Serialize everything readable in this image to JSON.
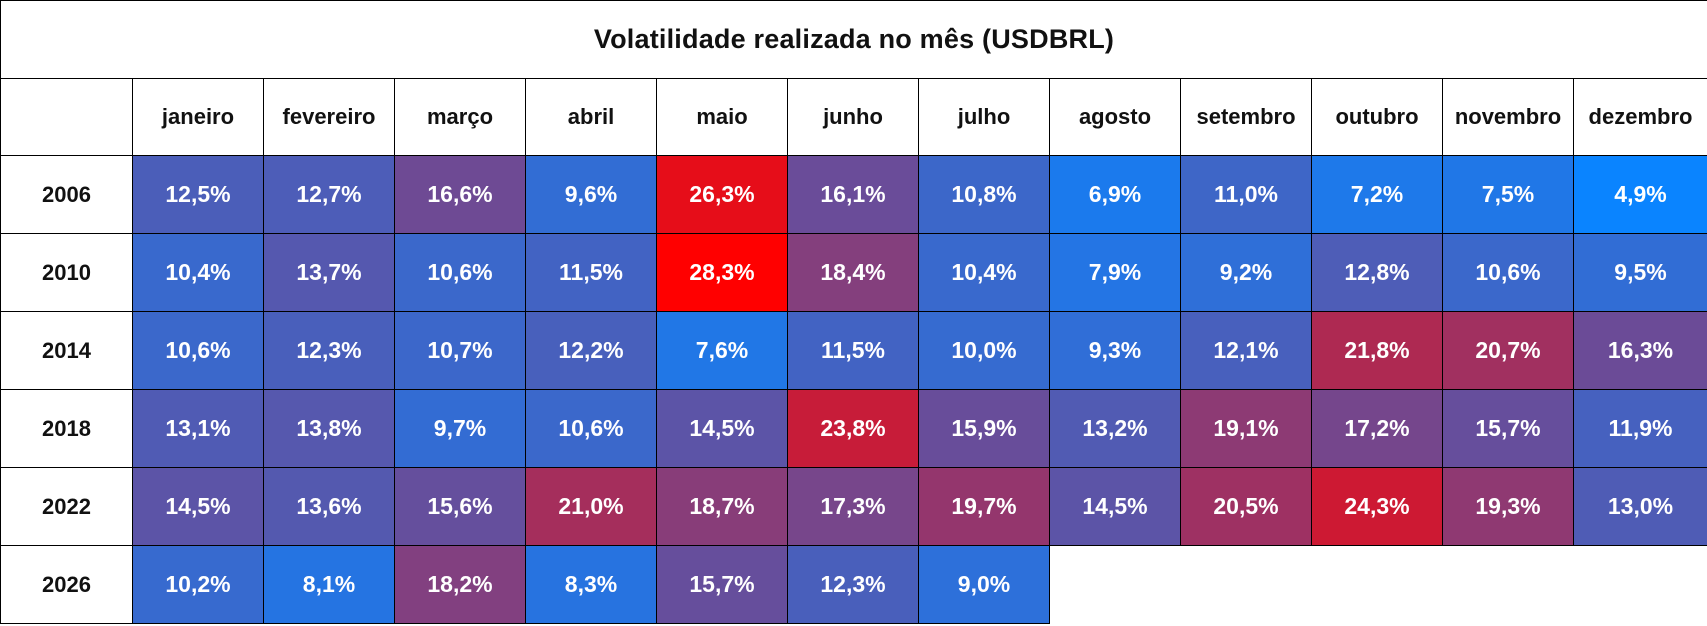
{
  "chart_data": {
    "type": "heatmap",
    "title": "Volatilidade realizada no mês (USDBRL)",
    "columns": [
      "janeiro",
      "fevereiro",
      "março",
      "abril",
      "maio",
      "junho",
      "julho",
      "agosto",
      "setembro",
      "outubro",
      "novembro",
      "dezembro"
    ],
    "rows": [
      "2006",
      "2010",
      "2014",
      "2018",
      "2022",
      "2026"
    ],
    "value_suffix": "%",
    "values": [
      [
        12.5,
        12.7,
        16.6,
        9.6,
        26.3,
        16.1,
        10.8,
        6.9,
        11.0,
        7.2,
        7.5,
        4.9
      ],
      [
        10.4,
        13.7,
        10.6,
        11.5,
        28.3,
        18.4,
        10.4,
        7.9,
        9.2,
        12.8,
        10.6,
        9.5
      ],
      [
        10.6,
        12.3,
        10.7,
        12.2,
        7.6,
        11.5,
        10.0,
        9.3,
        12.1,
        21.8,
        20.7,
        16.3
      ],
      [
        13.1,
        13.8,
        9.7,
        10.6,
        14.5,
        23.8,
        15.9,
        13.2,
        19.1,
        17.2,
        15.7,
        11.9
      ],
      [
        14.5,
        13.6,
        15.6,
        21.0,
        18.7,
        17.3,
        19.7,
        14.5,
        20.5,
        24.3,
        19.3,
        13.0
      ],
      [
        10.2,
        8.1,
        18.2,
        8.3,
        15.7,
        12.3,
        9.0,
        null,
        null,
        null,
        null,
        null
      ]
    ],
    "color_scale": {
      "min": 4.9,
      "max": 28.3,
      "low_color": "#0a84ff",
      "mid_color": "#6e4a94",
      "high_color": "#ff0000"
    }
  }
}
